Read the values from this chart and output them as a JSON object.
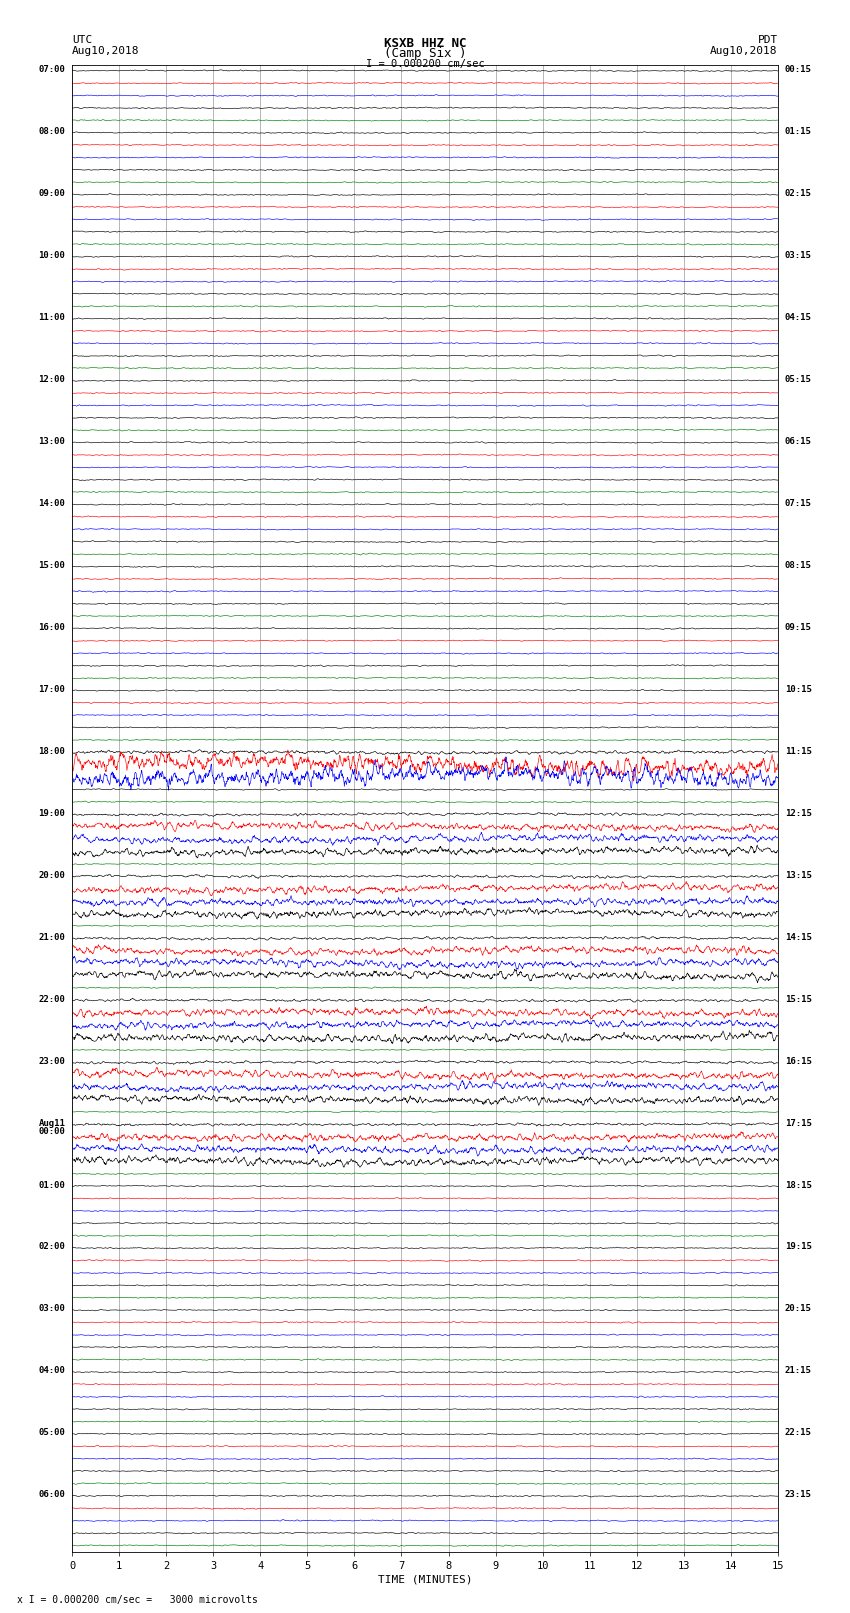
{
  "title_line1": "KSXB HHZ NC",
  "title_line2": "(Camp Six )",
  "scale_label": "I = 0.000200 cm/sec",
  "left_header_line1": "UTC",
  "left_header_line2": "Aug10,2018",
  "right_header_line1": "PDT",
  "right_header_line2": "Aug10,2018",
  "bottom_label": "TIME (MINUTES)",
  "bottom_note": "x I = 0.000200 cm/sec =   3000 microvolts",
  "left_times": [
    "07:00",
    "08:00",
    "09:00",
    "10:00",
    "11:00",
    "12:00",
    "13:00",
    "14:00",
    "15:00",
    "16:00",
    "17:00",
    "18:00",
    "19:00",
    "20:00",
    "21:00",
    "22:00",
    "23:00",
    "Aug11\n00:00",
    "01:00",
    "02:00",
    "03:00",
    "04:00",
    "05:00",
    "06:00"
  ],
  "right_times": [
    "00:15",
    "01:15",
    "02:15",
    "03:15",
    "04:15",
    "05:15",
    "06:15",
    "07:15",
    "08:15",
    "09:15",
    "10:15",
    "11:15",
    "12:15",
    "13:15",
    "14:15",
    "15:15",
    "16:15",
    "17:15",
    "18:15",
    "19:15",
    "20:15",
    "21:15",
    "22:15",
    "23:15"
  ],
  "n_blocks": 24,
  "traces_per_block": 5,
  "trace_colors": [
    "black",
    "red",
    "blue",
    "black",
    "green"
  ],
  "bg_color": "#ffffff",
  "x_ticks": [
    0,
    1,
    2,
    3,
    4,
    5,
    6,
    7,
    8,
    9,
    10,
    11,
    12,
    13,
    14,
    15
  ],
  "earthquake_block": 11,
  "eq_amplitude": 3.0,
  "post_eq_blocks": [
    12,
    13,
    14,
    15,
    16,
    17
  ],
  "post_eq_amplitude": 1.2
}
